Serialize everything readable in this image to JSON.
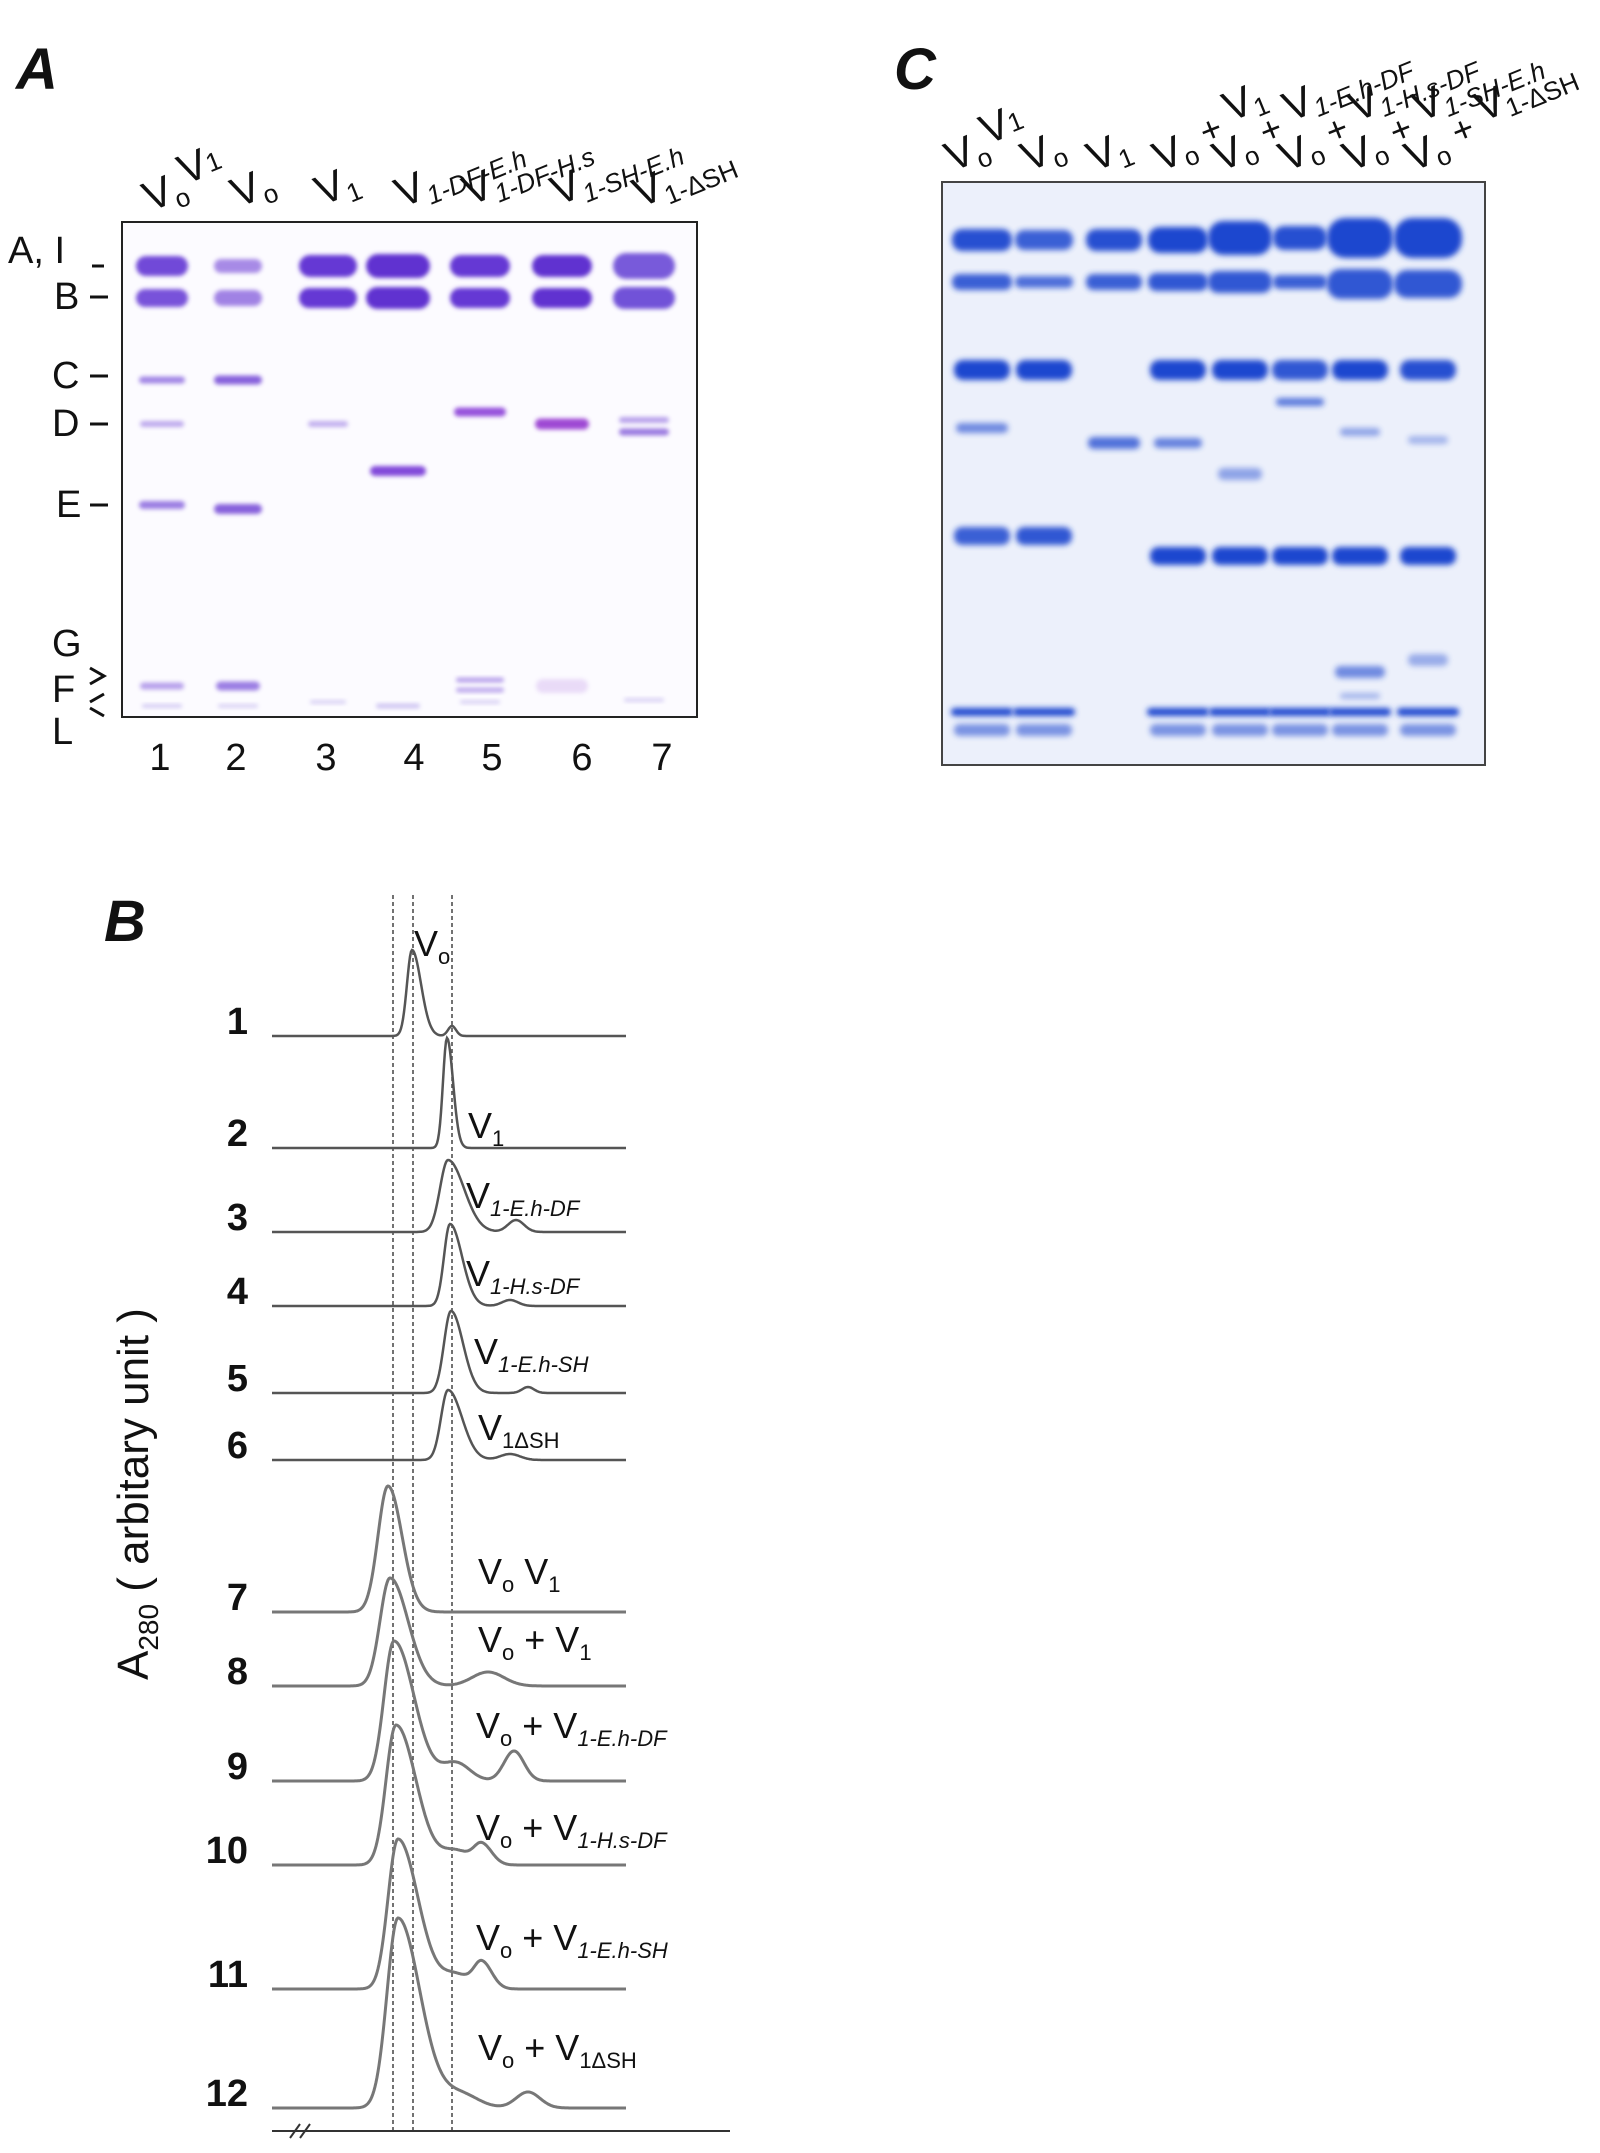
{
  "panels": {
    "A": "A",
    "B": "B",
    "C": "C"
  },
  "panelA": {
    "band_labels": [
      "A, I",
      "B",
      "C",
      "D",
      "E",
      "G",
      "F",
      "L"
    ],
    "lane_numbers": [
      "1",
      "2",
      "3",
      "4",
      "5",
      "6",
      "7"
    ],
    "lane_headers": [
      {
        "base": "V",
        "sub": "o",
        "extra": "V",
        "sub2": "1"
      },
      {
        "base": "V",
        "sub": "o"
      },
      {
        "base": "V",
        "sub": "1"
      },
      {
        "base": "V",
        "sub": "1-DF-E.h"
      },
      {
        "base": "V",
        "sub": "1-DF-H.s"
      },
      {
        "base": "V",
        "sub": "1-SH-E.h"
      },
      {
        "base": "V",
        "sub": "1-ΔSH"
      }
    ]
  },
  "panelB": {
    "y_axis_label": "A",
    "y_axis_sub": "280",
    "y_axis_suffix": " ( arbitary unit )",
    "trace_numbers": [
      "1",
      "2",
      "3",
      "4",
      "5",
      "6",
      "7",
      "8",
      "9",
      "10",
      "11",
      "12"
    ],
    "trace_labels": [
      {
        "main": "V",
        "sub": "o",
        "plus": "",
        "main2": "",
        "sub2": ""
      },
      {
        "main": "V",
        "sub": "1",
        "plus": "",
        "main2": "",
        "sub2": ""
      },
      {
        "main": "V",
        "sub": "1-E.h-DF",
        "plus": "",
        "main2": "",
        "sub2": ""
      },
      {
        "main": "V",
        "sub": "1-H.s-DF",
        "plus": "",
        "main2": "",
        "sub2": ""
      },
      {
        "main": "V",
        "sub": "1-E.h-SH",
        "plus": "",
        "main2": "",
        "sub2": ""
      },
      {
        "main": "V",
        "sub": "1ΔSH",
        "plus": "",
        "main2": "",
        "sub2": ""
      },
      {
        "main": "V",
        "sub": "o",
        "plus": " ",
        "main2": "V",
        "sub2": "1"
      },
      {
        "main": "V",
        "sub": "o",
        "plus": " +  ",
        "main2": "V",
        "sub2": "1"
      },
      {
        "main": "V",
        "sub": "o",
        "plus": " + ",
        "main2": "V",
        "sub2": "1-E.h-DF"
      },
      {
        "main": "V",
        "sub": "o",
        "plus": " + ",
        "main2": "V",
        "sub2": "1-H.s-DF"
      },
      {
        "main": "V",
        "sub": "o",
        "plus": " + ",
        "main2": "V",
        "sub2": "1-E.h-SH"
      },
      {
        "main": "V",
        "sub": "o",
        "plus": " + ",
        "main2": "V",
        "sub2": "1ΔSH"
      }
    ]
  },
  "panelC": {
    "lane_headers": [
      {
        "plus": "",
        "base": "V",
        "sub": "o",
        "extra": "V",
        "sub2": "1"
      },
      {
        "plus": "",
        "base": "V",
        "sub": "o",
        "extra": "",
        "sub2": ""
      },
      {
        "plus": "",
        "base": "V",
        "sub": "1",
        "extra": "",
        "sub2": ""
      },
      {
        "plus": "+ ",
        "base": "V",
        "sub": "1",
        "pre": "V",
        "presub": "o"
      },
      {
        "plus": "+ ",
        "base": "V",
        "sub": "1-E.h-DF",
        "pre": "V",
        "presub": "o"
      },
      {
        "plus": "+ ",
        "base": "V",
        "sub": "1-H.s-DF",
        "pre": "V",
        "presub": "o"
      },
      {
        "plus": "+ ",
        "base": "V",
        "sub": "1-SH-E.h",
        "pre": "V",
        "presub": "o"
      },
      {
        "plus": "+ ",
        "base": "V",
        "sub": "1-ΔSH",
        "pre": "V",
        "presub": "o"
      }
    ]
  }
}
